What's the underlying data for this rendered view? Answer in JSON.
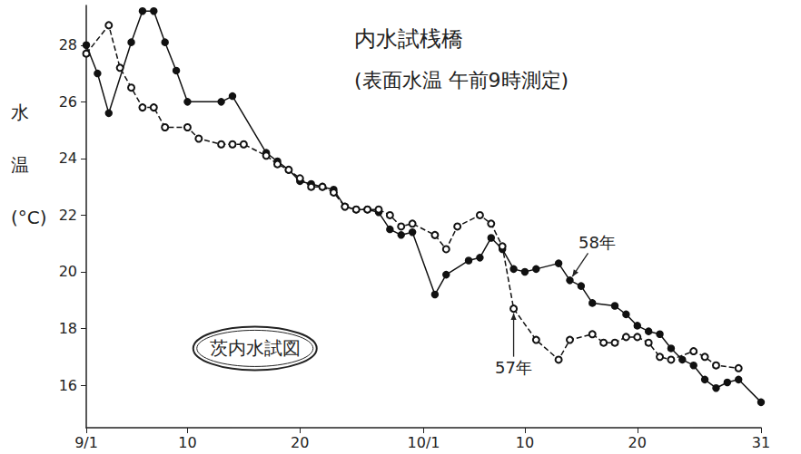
{
  "chart_data": {
    "type": "line",
    "title": "内水試桟橋",
    "subtitle": "(表面水温 午前9時測定)",
    "y_label": "水温(°C)",
    "categories": [
      "9/1",
      null,
      null,
      null,
      null,
      null,
      null,
      null,
      null,
      "10",
      null,
      null,
      null,
      null,
      null,
      null,
      null,
      null,
      null,
      "20",
      null,
      null,
      null,
      null,
      null,
      null,
      null,
      null,
      null,
      null,
      "10/1",
      null,
      null,
      null,
      null,
      null,
      null,
      null,
      null,
      "10",
      null,
      null,
      null,
      null,
      null,
      null,
      null,
      null,
      null,
      "20",
      null,
      null,
      null,
      null,
      null,
      null,
      null,
      null,
      null,
      null,
      "31"
    ],
    "series": [
      {
        "name": "58年",
        "color": "#111111",
        "marker": "circle",
        "line_style": "solid",
        "values": [
          28.0,
          27.0,
          25.6,
          null,
          28.1,
          29.2,
          29.2,
          28.1,
          27.1,
          26.0,
          null,
          null,
          26.0,
          26.2,
          null,
          null,
          24.2,
          23.9,
          23.6,
          23.2,
          23.1,
          23.0,
          22.9,
          22.3,
          22.2,
          22.2,
          22.1,
          21.5,
          21.3,
          21.4,
          null,
          19.2,
          19.9,
          null,
          20.4,
          20.5,
          21.2,
          20.8,
          20.1,
          20.0,
          20.1,
          null,
          20.3,
          19.7,
          19.5,
          18.9,
          null,
          18.8,
          18.5,
          18.1,
          17.9,
          17.8,
          17.3,
          16.9,
          16.7,
          16.2,
          15.9,
          16.1,
          16.2,
          null,
          15.4
        ]
      },
      {
        "name": "57年",
        "color": "#111111",
        "marker": "emptyCircle",
        "line_style": "dashed",
        "values": [
          27.7,
          null,
          28.7,
          27.2,
          26.5,
          25.8,
          25.8,
          25.1,
          null,
          25.1,
          24.7,
          null,
          24.5,
          24.5,
          24.5,
          null,
          24.1,
          23.8,
          23.6,
          23.3,
          23.0,
          23.0,
          22.8,
          22.3,
          22.2,
          22.2,
          22.2,
          22.0,
          21.6,
          21.7,
          null,
          21.3,
          20.8,
          21.6,
          null,
          22.0,
          21.7,
          20.9,
          18.7,
          null,
          17.6,
          null,
          16.9,
          17.6,
          null,
          17.8,
          17.5,
          17.5,
          17.7,
          17.7,
          17.5,
          17.0,
          16.9,
          null,
          17.2,
          17.0,
          16.7,
          null,
          16.6,
          null,
          null
        ]
      }
    ],
    "ylim": [
      14.5,
      29.4
    ],
    "yticks": [
      16,
      18,
      20,
      22,
      24,
      26,
      28
    ],
    "grid": false,
    "annotations": [
      {
        "text": "58年",
        "x": 43,
        "y": 19.7
      },
      {
        "text": "57年",
        "x": 38,
        "y": 18.7
      },
      {
        "text": "茨内水試図",
        "x": 15,
        "y": 17.3
      }
    ]
  }
}
